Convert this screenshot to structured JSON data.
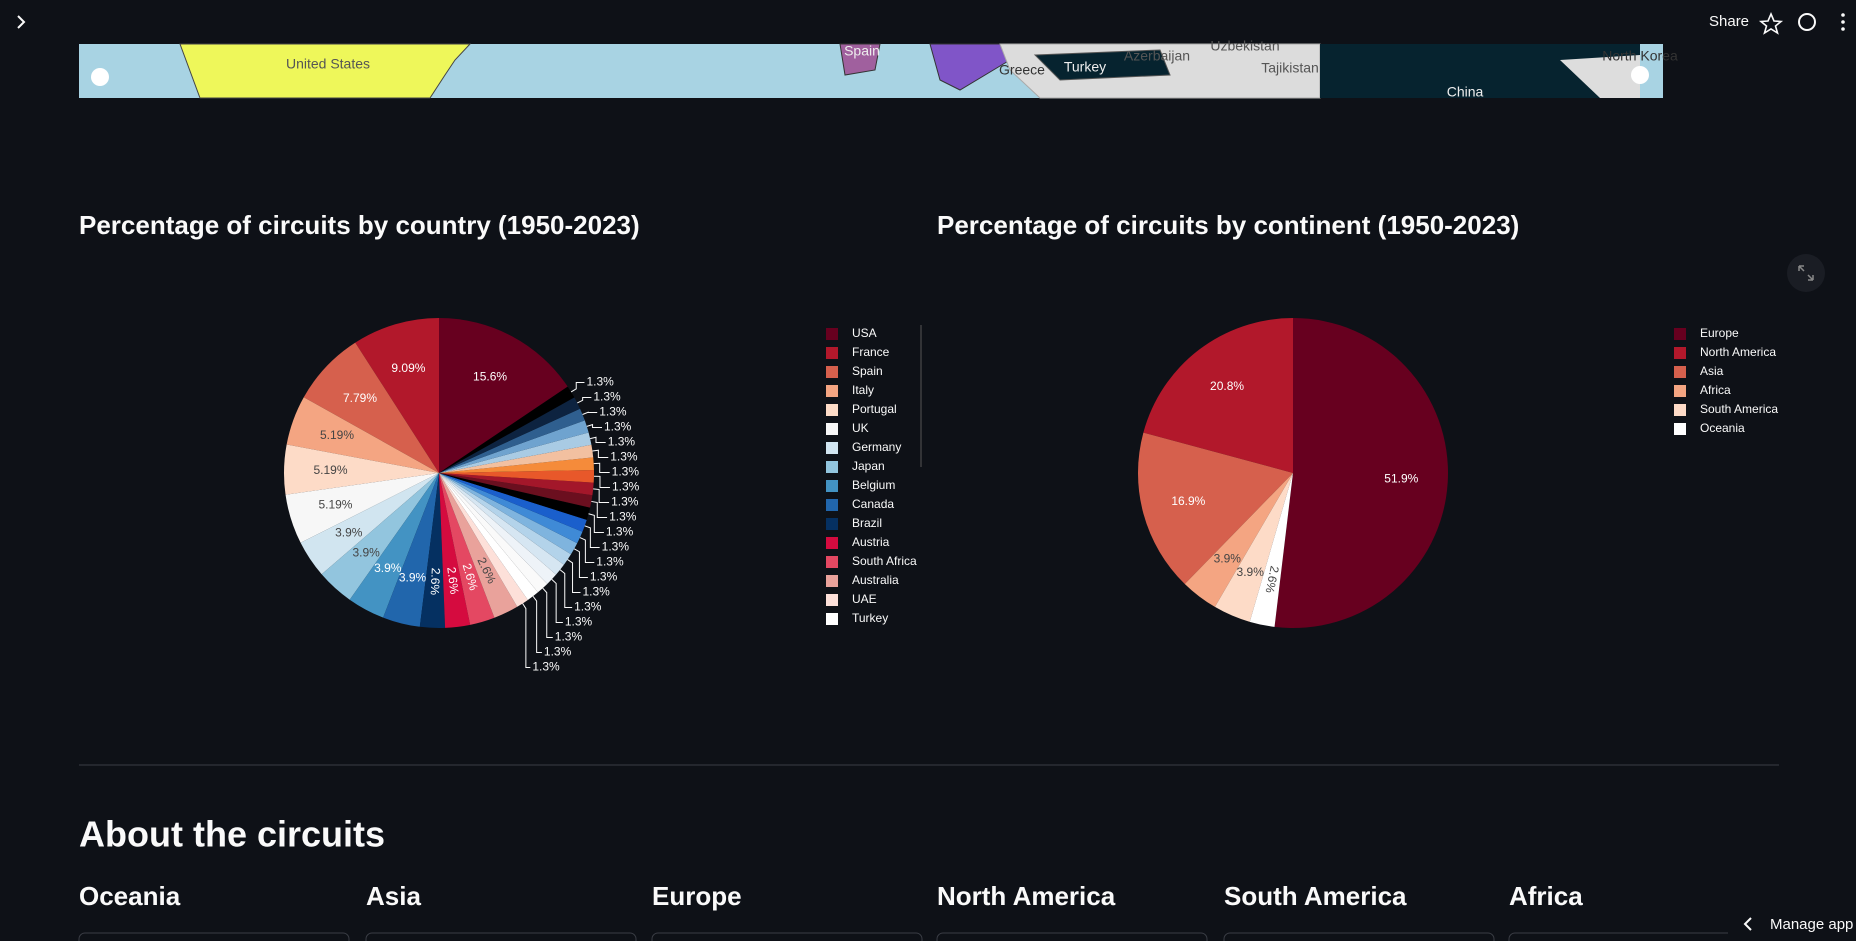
{
  "header": {
    "share": "Share"
  },
  "map": {
    "labels": [
      "United States",
      "Spain",
      "Greece",
      "Turkey",
      "Azerbaijan",
      "Uzbekistan",
      "Tajikistan",
      "North Korea",
      "China"
    ]
  },
  "chart_data": [
    {
      "type": "pie",
      "title": "Percentage of circuits by country (1950-2023)",
      "categories": [
        "USA",
        "France",
        "Spain",
        "Italy",
        "Portugal",
        "UK",
        "Germany",
        "Japan",
        "Belgium",
        "Canada",
        "Brazil",
        "Austria",
        "South Africa",
        "Australia",
        "UAE",
        "Turkey",
        null,
        null,
        null,
        null,
        null,
        null,
        null,
        null,
        null,
        null,
        null,
        null,
        null,
        null,
        null,
        null,
        null,
        null
      ],
      "values": [
        15.6,
        9.09,
        7.79,
        5.19,
        5.19,
        5.19,
        3.9,
        3.9,
        3.9,
        3.9,
        2.6,
        2.6,
        2.6,
        2.6,
        1.3,
        1.3,
        1.3,
        1.3,
        1.3,
        1.3,
        1.3,
        1.3,
        1.3,
        1.3,
        1.3,
        1.3,
        1.3,
        1.3,
        1.3,
        1.3,
        1.3,
        1.3,
        1.3,
        1.3
      ],
      "value_labels": [
        "15.6%",
        "9.09%",
        "7.79%",
        "5.19%",
        "5.19%",
        "5.19%",
        "3.9%",
        "3.9%",
        "3.9%",
        "3.9%",
        "2.6%",
        "2.6%",
        "2.6%",
        "2.6%",
        "1.3%",
        "1.3%",
        "1.3%",
        "1.3%",
        "1.3%",
        "1.3%",
        "1.3%",
        "1.3%",
        "1.3%",
        "1.3%",
        "1.3%",
        "1.3%",
        "1.3%",
        "1.3%",
        "1.3%",
        "1.3%",
        "1.3%",
        "1.3%",
        "1.3%",
        "1.3%"
      ],
      "colors": [
        "#67001f",
        "#b2182b",
        "#d6604d",
        "#f4a582",
        "#fddbc7",
        "#f7f7f7",
        "#d1e5f0",
        "#92c5de",
        "#4393c3",
        "#2166ac",
        "#053061",
        "#d50b3f",
        "#e44862",
        "#e9a29b",
        "#fde0d9",
        "#ffffff",
        "#fafafa",
        "#eef3f8",
        "#d6e6f2",
        "#b3d3ea",
        "#7fb4de",
        "#3f8ad6",
        "#1a5fcc",
        "#000000",
        "#6b0f1f",
        "#a3172a",
        "#e8582a",
        "#f58b3a",
        "#f2c0a0",
        "#a9cbe4",
        "#6fa3cf",
        "#2f5f8f",
        "#0d2340",
        "#000000"
      ],
      "legend": "right"
    },
    {
      "type": "pie",
      "title": "Percentage of circuits by continent (1950-2023)",
      "categories": [
        "Europe",
        "North America",
        "Asia",
        "Africa",
        "South America",
        "Oceania"
      ],
      "values": [
        51.9,
        20.8,
        16.9,
        3.9,
        3.9,
        2.6
      ],
      "value_labels": [
        "51.9%",
        "20.8%",
        "16.9%",
        "3.9%",
        "3.9%",
        "2.6%"
      ],
      "colors": [
        "#67001f",
        "#b2182b",
        "#d6604d",
        "#f4a582",
        "#fddbc7",
        "#ffffff"
      ],
      "legend": "right"
    }
  ],
  "section": {
    "title": "About the circuits",
    "continents": [
      "Oceania",
      "Asia",
      "Europe",
      "North America",
      "South America",
      "Africa"
    ]
  },
  "footer": {
    "manage": "Manage app"
  }
}
